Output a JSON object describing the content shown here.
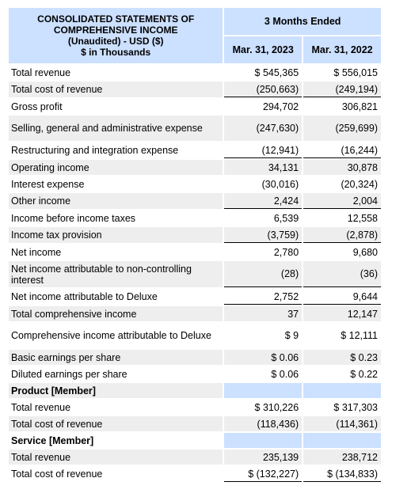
{
  "header": {
    "title_line1": "CONSOLIDATED STATEMENTS OF",
    "title_line2": "COMPREHENSIVE INCOME",
    "title_line3": "(Unaudited) - USD ($)",
    "title_line4": "$ in Thousands",
    "period": "3 Months Ended",
    "col1": "Mar. 31, 2023",
    "col2": "Mar. 31, 2022"
  },
  "rows": [
    {
      "label": "Total revenue",
      "v1": "$ 545,365",
      "v2": "$ 556,015"
    },
    {
      "label": "Total cost of revenue",
      "v1": "(250,663)",
      "v2": "(249,194)"
    },
    {
      "label": "Gross profit",
      "v1": "294,702",
      "v2": "306,821"
    },
    {
      "label": "Selling, general and administrative expense",
      "v1": "(247,630)",
      "v2": "(259,699)"
    },
    {
      "label": "Restructuring and integration expense",
      "v1": "(12,941)",
      "v2": "(16,244)"
    },
    {
      "label": "Operating income",
      "v1": "34,131",
      "v2": "30,878"
    },
    {
      "label": "Interest expense",
      "v1": "(30,016)",
      "v2": "(20,324)"
    },
    {
      "label": "Other income",
      "v1": "2,424",
      "v2": "2,004"
    },
    {
      "label": "Income before income taxes",
      "v1": "6,539",
      "v2": "12,558"
    },
    {
      "label": "Income tax provision",
      "v1": "(3,759)",
      "v2": "(2,878)"
    },
    {
      "label": "Net income",
      "v1": "2,780",
      "v2": "9,680"
    },
    {
      "label": "Net income attributable to non-controlling interest",
      "v1": "(28)",
      "v2": "(36)"
    },
    {
      "label": "Net income attributable to Deluxe",
      "v1": "2,752",
      "v2": "9,644"
    },
    {
      "label": "Total comprehensive income",
      "v1": "37",
      "v2": "12,147"
    },
    {
      "label": "Comprehensive income attributable to Deluxe",
      "v1": "$ 9",
      "v2": "$ 12,111"
    },
    {
      "label": "Basic earnings per share",
      "v1": "$ 0.06",
      "v2": "$ 0.23"
    },
    {
      "label": "Diluted earnings per share",
      "v1": "$ 0.06",
      "v2": "$ 0.22"
    },
    {
      "label": "Product [Member]"
    },
    {
      "label": "Total revenue",
      "v1": "$ 310,226",
      "v2": "$ 317,303"
    },
    {
      "label": "Total cost of revenue",
      "v1": "(118,436)",
      "v2": "(114,361)"
    },
    {
      "label": "Service [Member]"
    },
    {
      "label": "Total revenue",
      "v1": "235,139",
      "v2": "238,712"
    },
    {
      "label": "Total cost of revenue",
      "v1": "$ (132,227)",
      "v2": "$ (134,833)"
    }
  ]
}
